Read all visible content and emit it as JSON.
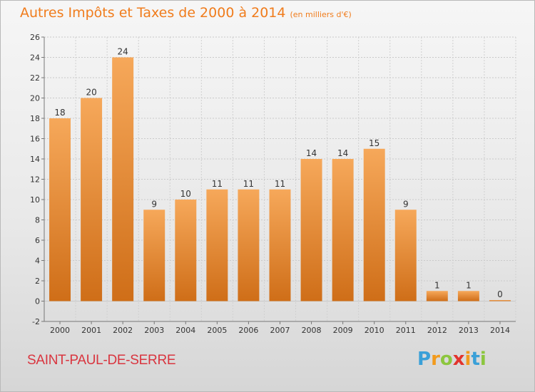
{
  "title": "Autres Impôts et Taxes de 2000 à 2014",
  "subtitle": "(en milliers d'€)",
  "commune": "SAINT-PAUL-DE-SERRE",
  "logo": {
    "letters": [
      "P",
      "r",
      "o",
      "x",
      "i",
      "t",
      "i"
    ],
    "colors": [
      "#3aa0d8",
      "#f29a1c",
      "#8cc63e",
      "#e2342d",
      "#f29a1c",
      "#3aa0d8",
      "#8cc63e"
    ]
  },
  "colors": {
    "bar_light": "#f6a85a",
    "bar_dark": "#cf6e18",
    "title": "#f07c1c",
    "commune": "#d9353f"
  },
  "chart_data": {
    "type": "bar",
    "categories": [
      "2000",
      "2001",
      "2002",
      "2003",
      "2004",
      "2005",
      "2006",
      "2007",
      "2008",
      "2009",
      "2010",
      "2011",
      "2012",
      "2013",
      "2014"
    ],
    "values": [
      18,
      20,
      24,
      9,
      10,
      11,
      11,
      11,
      14,
      14,
      15,
      9,
      1,
      1,
      0
    ],
    "ylim": [
      -2,
      26
    ],
    "yticks": [
      -2,
      0,
      2,
      4,
      6,
      8,
      10,
      12,
      14,
      16,
      18,
      20,
      22,
      24,
      26
    ],
    "grid": true,
    "legend": "none",
    "title": "Autres Impôts et Taxes de 2000 à 2014",
    "subtitle": "(en milliers d'€)"
  }
}
